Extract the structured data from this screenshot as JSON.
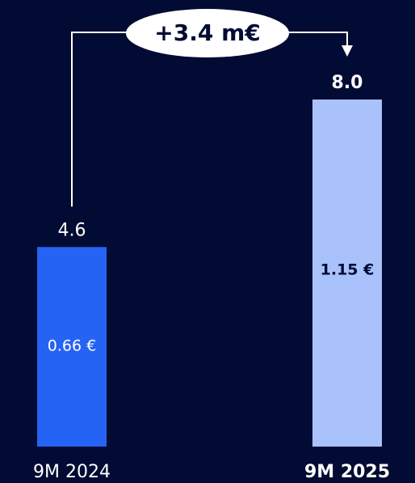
{
  "chart_data": {
    "type": "bar",
    "title": "",
    "xlabel": "",
    "ylabel": "",
    "categories": [
      "9M 2024",
      "9M 2025"
    ],
    "values": [
      4.6,
      8.0
    ],
    "value_labels": [
      "4.6",
      "8.0"
    ],
    "inner_labels": [
      "0.66 €",
      "1.15 €"
    ],
    "highlighted_category": "9M 2025",
    "annotation": "+3.4 m€",
    "ylim": [
      0,
      8.0
    ],
    "grid": false,
    "legend": "none"
  },
  "colors": {
    "background": "#020b33",
    "bar_2024": "#2563f5",
    "bar_2025": "#a9c2fb",
    "text": "#ffffff",
    "text_dark": "#020b33",
    "connector": "#ffffff",
    "bubble_fill": "#ffffff"
  }
}
